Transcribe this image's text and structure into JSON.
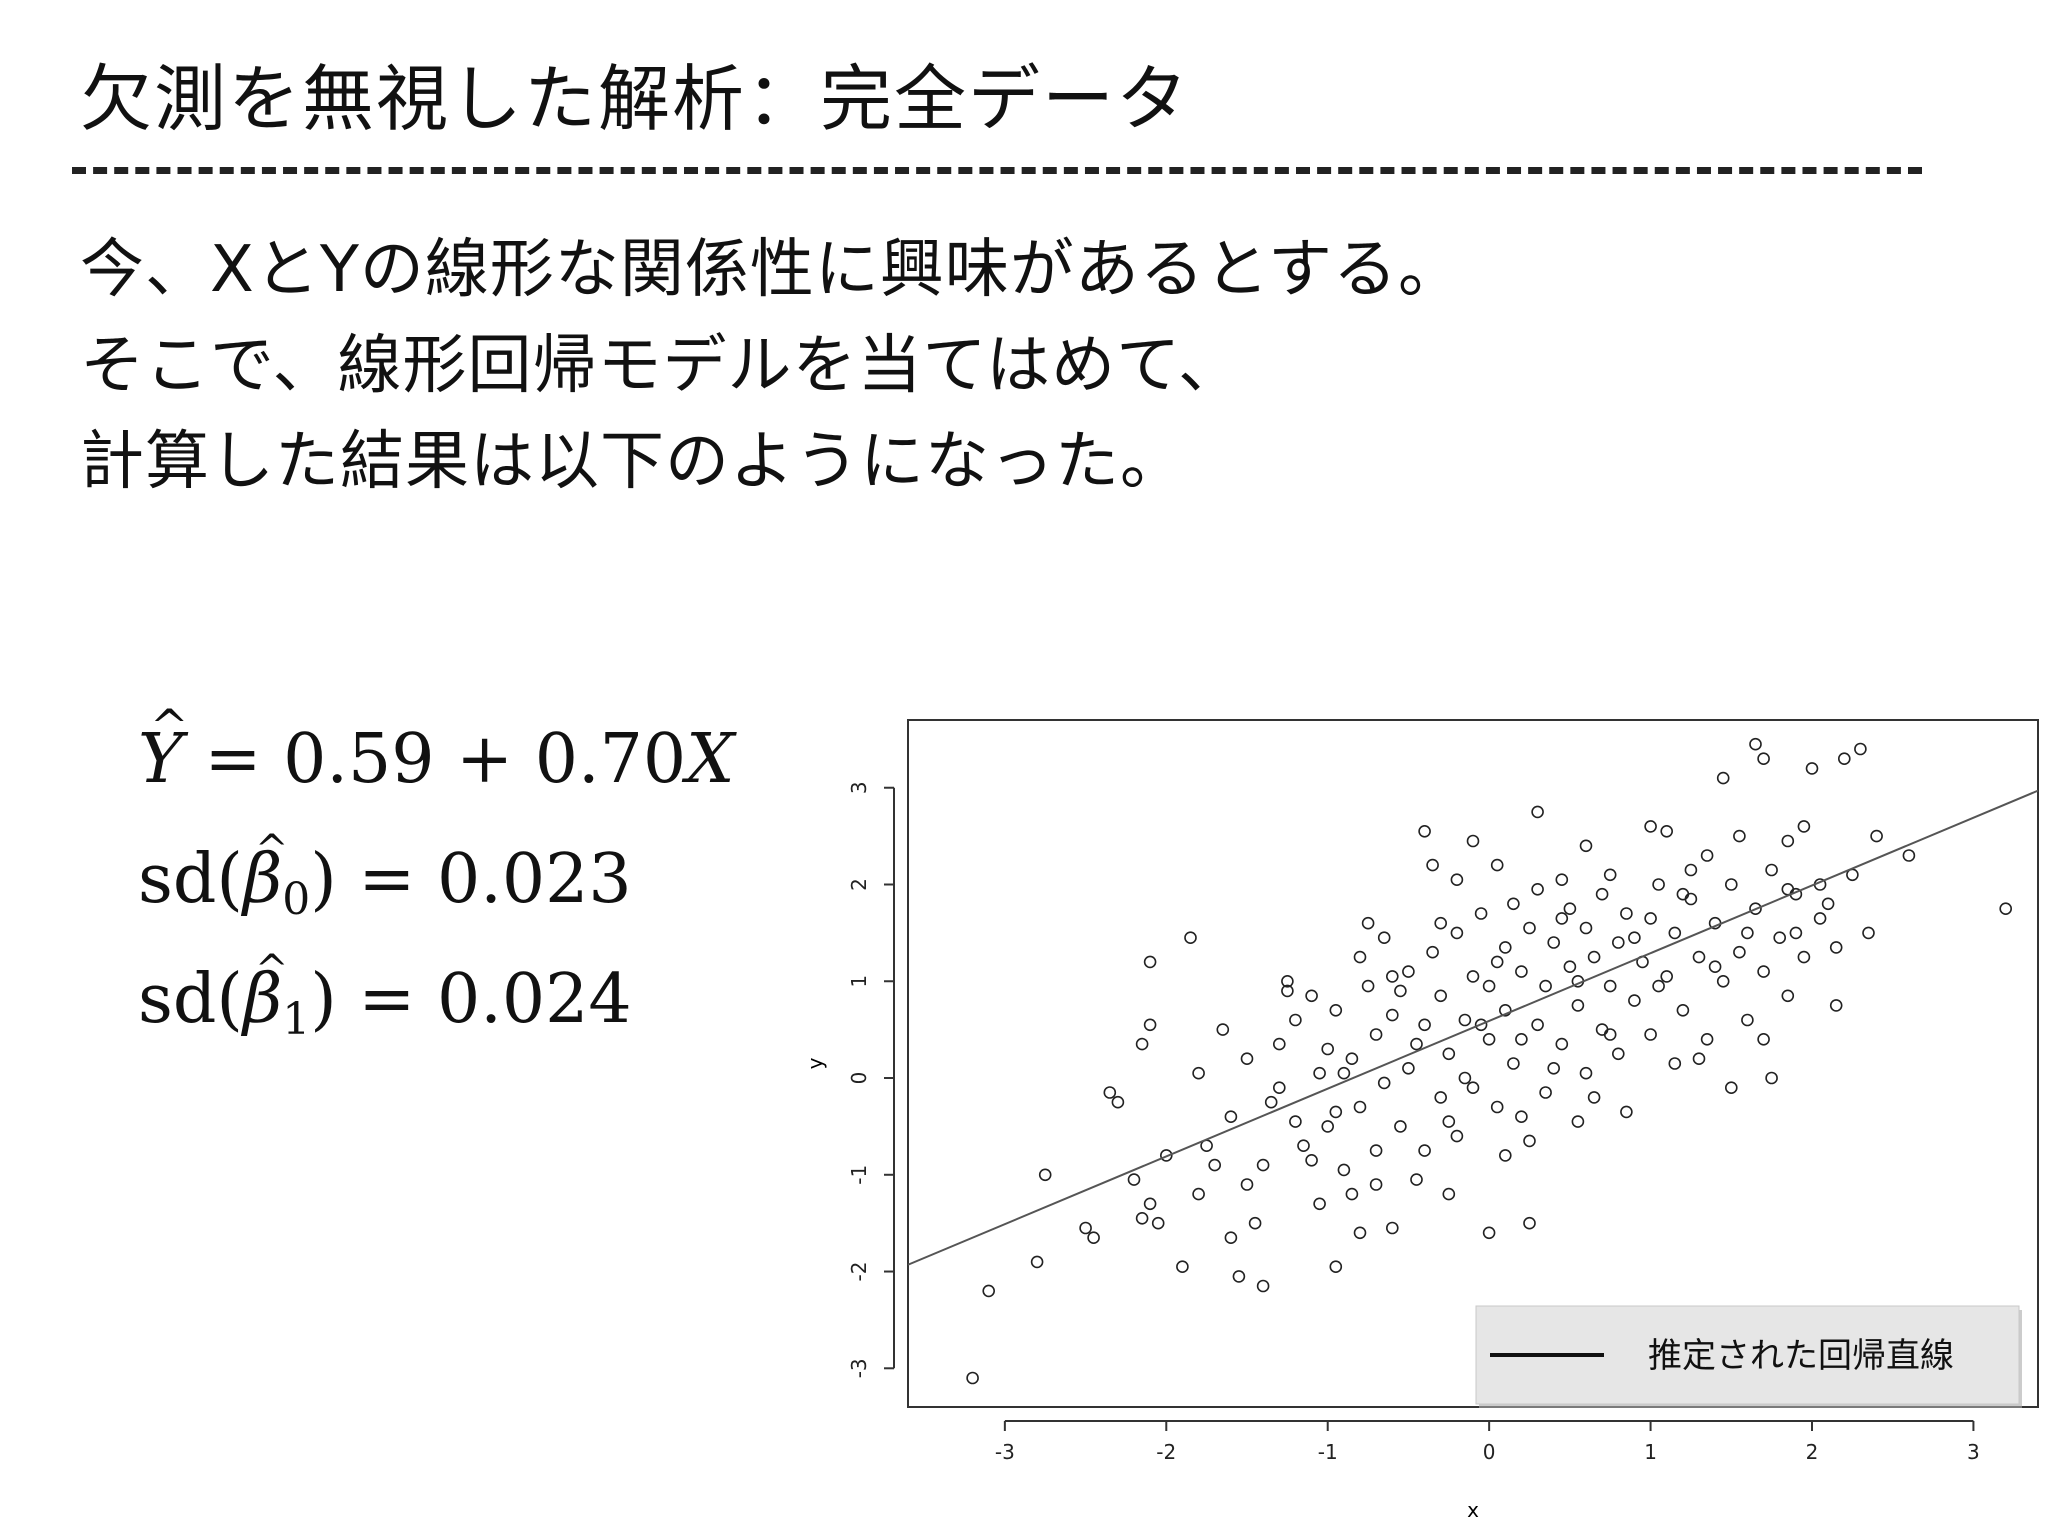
{
  "title": "欠測を無視した解析：完全データ",
  "body": {
    "lines": [
      "今、XとYの線形な関係性に興味があるとする。",
      "そこで、線形回帰モデルを当てはめて、",
      "計算した結果は以下のようになった。"
    ]
  },
  "formulas": {
    "f1_lhs": "Y",
    "f1_rhs": "= 0.59 + 0.70",
    "f1_var": "X",
    "f2_pre": "sd(",
    "f2_sym": "β",
    "f2_sub": "0",
    "f2_post": ") = 0.023",
    "f3_pre": "sd(",
    "f3_sym": "β",
    "f3_sub": "1",
    "f3_post": ") = 0.024"
  },
  "chart_data": {
    "type": "scatter",
    "xlabel": "x",
    "ylabel": "y",
    "xlim": [
      -3.6,
      3.4
    ],
    "ylim": [
      -3.4,
      3.7
    ],
    "xticks": [
      -3,
      -2,
      -1,
      0,
      1,
      2,
      3
    ],
    "yticks": [
      -3,
      -2,
      -1,
      0,
      1,
      2,
      3
    ],
    "grid": false,
    "legend_position": "bottom-right",
    "line_color": "#555555",
    "regression": {
      "intercept": 0.59,
      "slope": 0.7,
      "label": "推定された回帰直線"
    },
    "points": [
      [
        -3.2,
        -3.1
      ],
      [
        -3.1,
        -2.2
      ],
      [
        -2.8,
        -1.9
      ],
      [
        -2.75,
        -1.0
      ],
      [
        -2.5,
        -1.55
      ],
      [
        -2.45,
        -1.65
      ],
      [
        -2.35,
        -0.15
      ],
      [
        -2.3,
        -0.25
      ],
      [
        -2.2,
        -1.05
      ],
      [
        -2.15,
        -1.45
      ],
      [
        -2.1,
        -1.3
      ],
      [
        -2.05,
        -1.5
      ],
      [
        -2.0,
        -0.8
      ],
      [
        -2.1,
        0.55
      ],
      [
        -2.15,
        0.35
      ],
      [
        -2.1,
        1.2
      ],
      [
        -1.9,
        -1.95
      ],
      [
        -1.85,
        1.45
      ],
      [
        -1.8,
        0.05
      ],
      [
        -1.75,
        -0.7
      ],
      [
        -1.6,
        -1.65
      ],
      [
        -1.55,
        -2.05
      ],
      [
        -1.45,
        -1.5
      ],
      [
        -1.4,
        -2.15
      ],
      [
        -1.3,
        0.35
      ],
      [
        -1.25,
        1.0
      ],
      [
        -1.2,
        -0.45
      ],
      [
        -1.1,
        0.85
      ],
      [
        -1.05,
        -1.3
      ],
      [
        -0.95,
        -1.95
      ],
      [
        -0.9,
        0.05
      ],
      [
        -0.8,
        -1.6
      ],
      [
        -0.75,
        1.6
      ],
      [
        -0.65,
        1.45
      ],
      [
        -0.6,
        -1.55
      ],
      [
        -0.55,
        0.9
      ],
      [
        -0.4,
        2.55
      ],
      [
        -0.35,
        2.2
      ],
      [
        -0.25,
        -1.2
      ],
      [
        -0.2,
        2.05
      ],
      [
        -0.1,
        2.45
      ],
      [
        0.0,
        -1.6
      ],
      [
        0.05,
        2.2
      ],
      [
        0.1,
        -0.8
      ],
      [
        0.25,
        -1.5
      ],
      [
        0.3,
        2.75
      ],
      [
        0.45,
        2.05
      ],
      [
        0.55,
        -0.45
      ],
      [
        0.6,
        2.4
      ],
      [
        0.75,
        2.1
      ],
      [
        0.85,
        -0.35
      ],
      [
        1.0,
        2.6
      ],
      [
        1.1,
        2.55
      ],
      [
        1.15,
        0.15
      ],
      [
        1.25,
        2.15
      ],
      [
        1.35,
        2.3
      ],
      [
        1.45,
        3.1
      ],
      [
        1.5,
        -0.1
      ],
      [
        1.55,
        2.5
      ],
      [
        1.65,
        3.45
      ],
      [
        1.7,
        3.3
      ],
      [
        1.75,
        0.0
      ],
      [
        1.85,
        2.45
      ],
      [
        1.9,
        1.5
      ],
      [
        1.95,
        2.6
      ],
      [
        2.0,
        3.2
      ],
      [
        2.05,
        2.0
      ],
      [
        2.1,
        1.8
      ],
      [
        2.15,
        0.75
      ],
      [
        2.2,
        3.3
      ],
      [
        2.25,
        2.1
      ],
      [
        2.3,
        3.4
      ],
      [
        2.35,
        1.5
      ],
      [
        2.4,
        2.5
      ],
      [
        2.6,
        2.3
      ],
      [
        3.2,
        1.75
      ],
      [
        -1.6,
        -0.4
      ],
      [
        -1.5,
        0.2
      ],
      [
        -1.4,
        -0.9
      ],
      [
        -1.3,
        -0.1
      ],
      [
        -1.2,
        0.6
      ],
      [
        -1.15,
        -0.7
      ],
      [
        -1.0,
        0.3
      ],
      [
        -1.0,
        -0.5
      ],
      [
        -0.95,
        0.7
      ],
      [
        -0.9,
        -0.95
      ],
      [
        -0.85,
        0.2
      ],
      [
        -0.8,
        -0.3
      ],
      [
        -0.75,
        0.95
      ],
      [
        -0.7,
        -0.75
      ],
      [
        -0.7,
        0.45
      ],
      [
        -0.65,
        -0.05
      ],
      [
        -0.6,
        0.65
      ],
      [
        -0.55,
        -0.5
      ],
      [
        -0.5,
        1.1
      ],
      [
        -0.5,
        0.1
      ],
      [
        -0.45,
        -1.05
      ],
      [
        -0.4,
        0.55
      ],
      [
        -0.35,
        1.3
      ],
      [
        -0.3,
        -0.2
      ],
      [
        -0.3,
        0.85
      ],
      [
        -0.25,
        0.25
      ],
      [
        -0.2,
        1.5
      ],
      [
        -0.2,
        -0.6
      ],
      [
        -0.15,
        0.6
      ],
      [
        -0.1,
        1.05
      ],
      [
        -0.1,
        -0.1
      ],
      [
        -0.05,
        1.7
      ],
      [
        0.0,
        0.4
      ],
      [
        0.0,
        0.95
      ],
      [
        0.05,
        -0.3
      ],
      [
        0.1,
        1.35
      ],
      [
        0.1,
        0.7
      ],
      [
        0.15,
        1.8
      ],
      [
        0.15,
        0.15
      ],
      [
        0.2,
        1.1
      ],
      [
        0.2,
        -0.4
      ],
      [
        0.25,
        1.55
      ],
      [
        0.3,
        0.55
      ],
      [
        0.3,
        1.95
      ],
      [
        0.35,
        0.95
      ],
      [
        0.35,
        -0.15
      ],
      [
        0.4,
        1.4
      ],
      [
        0.45,
        0.35
      ],
      [
        0.5,
        1.15
      ],
      [
        0.5,
        1.75
      ],
      [
        0.55,
        0.75
      ],
      [
        0.6,
        1.55
      ],
      [
        0.6,
        0.05
      ],
      [
        0.65,
        1.25
      ],
      [
        0.7,
        0.5
      ],
      [
        0.7,
        1.9
      ],
      [
        0.75,
        0.95
      ],
      [
        0.8,
        1.4
      ],
      [
        0.8,
        0.25
      ],
      [
        0.85,
        1.7
      ],
      [
        0.9,
        0.8
      ],
      [
        0.95,
        1.2
      ],
      [
        1.0,
        1.65
      ],
      [
        1.0,
        0.45
      ],
      [
        1.05,
        2.0
      ],
      [
        1.1,
        1.05
      ],
      [
        1.15,
        1.5
      ],
      [
        1.2,
        0.7
      ],
      [
        1.25,
        1.85
      ],
      [
        1.3,
        1.25
      ],
      [
        1.35,
        0.4
      ],
      [
        1.4,
        1.6
      ],
      [
        1.45,
        1.0
      ],
      [
        1.5,
        2.0
      ],
      [
        1.55,
        1.3
      ],
      [
        1.6,
        0.6
      ],
      [
        1.65,
        1.75
      ],
      [
        1.7,
        1.1
      ],
      [
        1.75,
        2.15
      ],
      [
        1.8,
        1.45
      ],
      [
        1.85,
        0.85
      ],
      [
        1.9,
        1.9
      ],
      [
        1.95,
        1.25
      ],
      [
        2.05,
        1.65
      ],
      [
        -1.8,
        -1.2
      ],
      [
        -1.7,
        -0.9
      ],
      [
        -1.65,
        0.5
      ],
      [
        -1.5,
        -1.1
      ],
      [
        -1.35,
        -0.25
      ],
      [
        -1.25,
        0.9
      ],
      [
        -1.1,
        -0.85
      ],
      [
        -1.05,
        0.05
      ],
      [
        -0.95,
        -0.35
      ],
      [
        -0.85,
        -1.2
      ],
      [
        -0.8,
        1.25
      ],
      [
        -0.7,
        -1.1
      ],
      [
        -0.6,
        1.05
      ],
      [
        -0.45,
        0.35
      ],
      [
        -0.4,
        -0.75
      ],
      [
        -0.3,
        1.6
      ],
      [
        -0.25,
        -0.45
      ],
      [
        -0.15,
        0.0
      ],
      [
        -0.05,
        0.55
      ],
      [
        0.05,
        1.2
      ],
      [
        0.2,
        0.4
      ],
      [
        0.25,
        -0.65
      ],
      [
        0.4,
        0.1
      ],
      [
        0.45,
        1.65
      ],
      [
        0.55,
        1.0
      ],
      [
        0.65,
        -0.2
      ],
      [
        0.75,
        0.45
      ],
      [
        0.9,
        1.45
      ],
      [
        1.05,
        0.95
      ],
      [
        1.2,
        1.9
      ],
      [
        1.3,
        0.2
      ],
      [
        1.4,
        1.15
      ],
      [
        1.6,
        1.5
      ],
      [
        1.7,
        0.4
      ],
      [
        1.85,
        1.95
      ],
      [
        2.15,
        1.35
      ]
    ]
  }
}
